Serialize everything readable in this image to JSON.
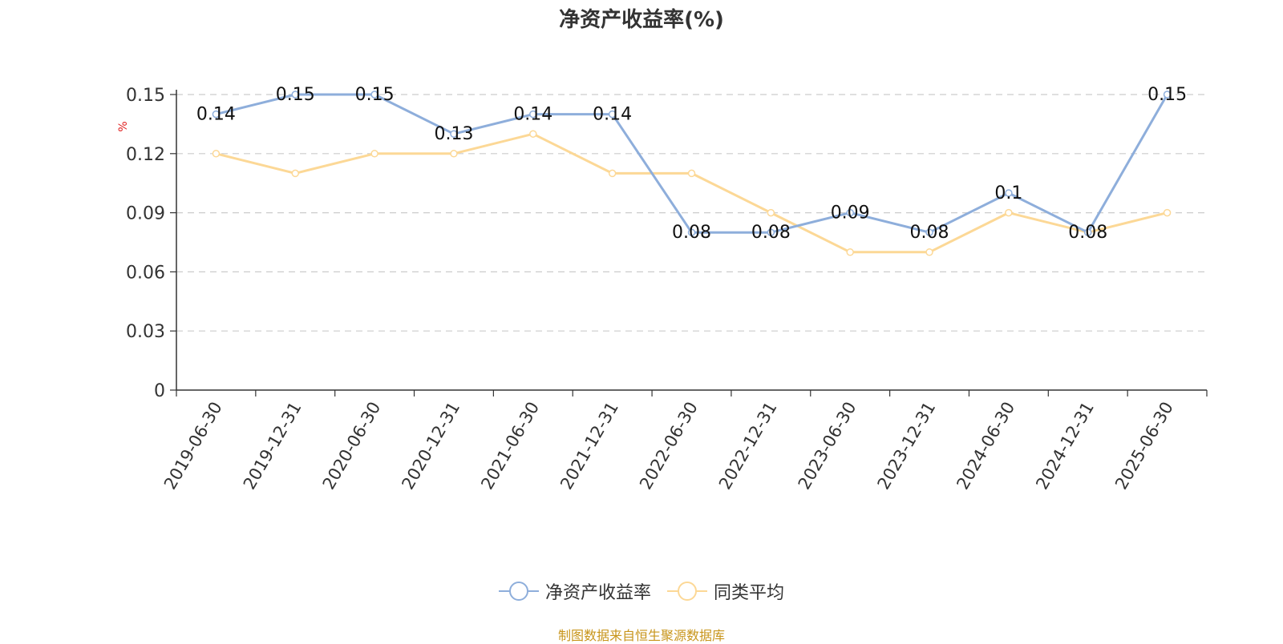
{
  "chart_data": {
    "type": "line",
    "title": "净资产收益率(%)",
    "ylabel": "%",
    "xlabel": "",
    "categories": [
      "2019-06-30",
      "2019-12-31",
      "2020-06-30",
      "2020-12-31",
      "2021-06-30",
      "2021-12-31",
      "2022-06-30",
      "2022-12-31",
      "2023-06-30",
      "2023-12-31",
      "2024-06-30",
      "2024-12-31",
      "2025-06-30"
    ],
    "series": [
      {
        "name": "净资产收益率",
        "color": "#8eaedb",
        "show_labels": true,
        "values": [
          0.14,
          0.15,
          0.15,
          0.13,
          0.14,
          0.14,
          0.08,
          0.08,
          0.09,
          0.08,
          0.1,
          0.08,
          0.15
        ],
        "labels": [
          "0.14",
          "0.15",
          "0.15",
          "0.13",
          "0.14",
          "0.14",
          "0.08",
          "0.08",
          "0.09",
          "0.08",
          "0.1",
          "0.08",
          "0.15"
        ]
      },
      {
        "name": "同类平均",
        "color": "#fcd896",
        "show_labels": false,
        "values": [
          0.12,
          0.11,
          0.12,
          0.12,
          0.13,
          0.11,
          0.11,
          0.09,
          0.07,
          0.07,
          0.09,
          0.08,
          0.09
        ]
      }
    ],
    "ylim": [
      0,
      0.15
    ],
    "yticks": [
      "0",
      "0.03",
      "0.06",
      "0.09",
      "0.12",
      "0.15"
    ],
    "grid": true,
    "legend_position": "bottom-center"
  },
  "source_text": "制图数据来自恒生聚源数据库"
}
